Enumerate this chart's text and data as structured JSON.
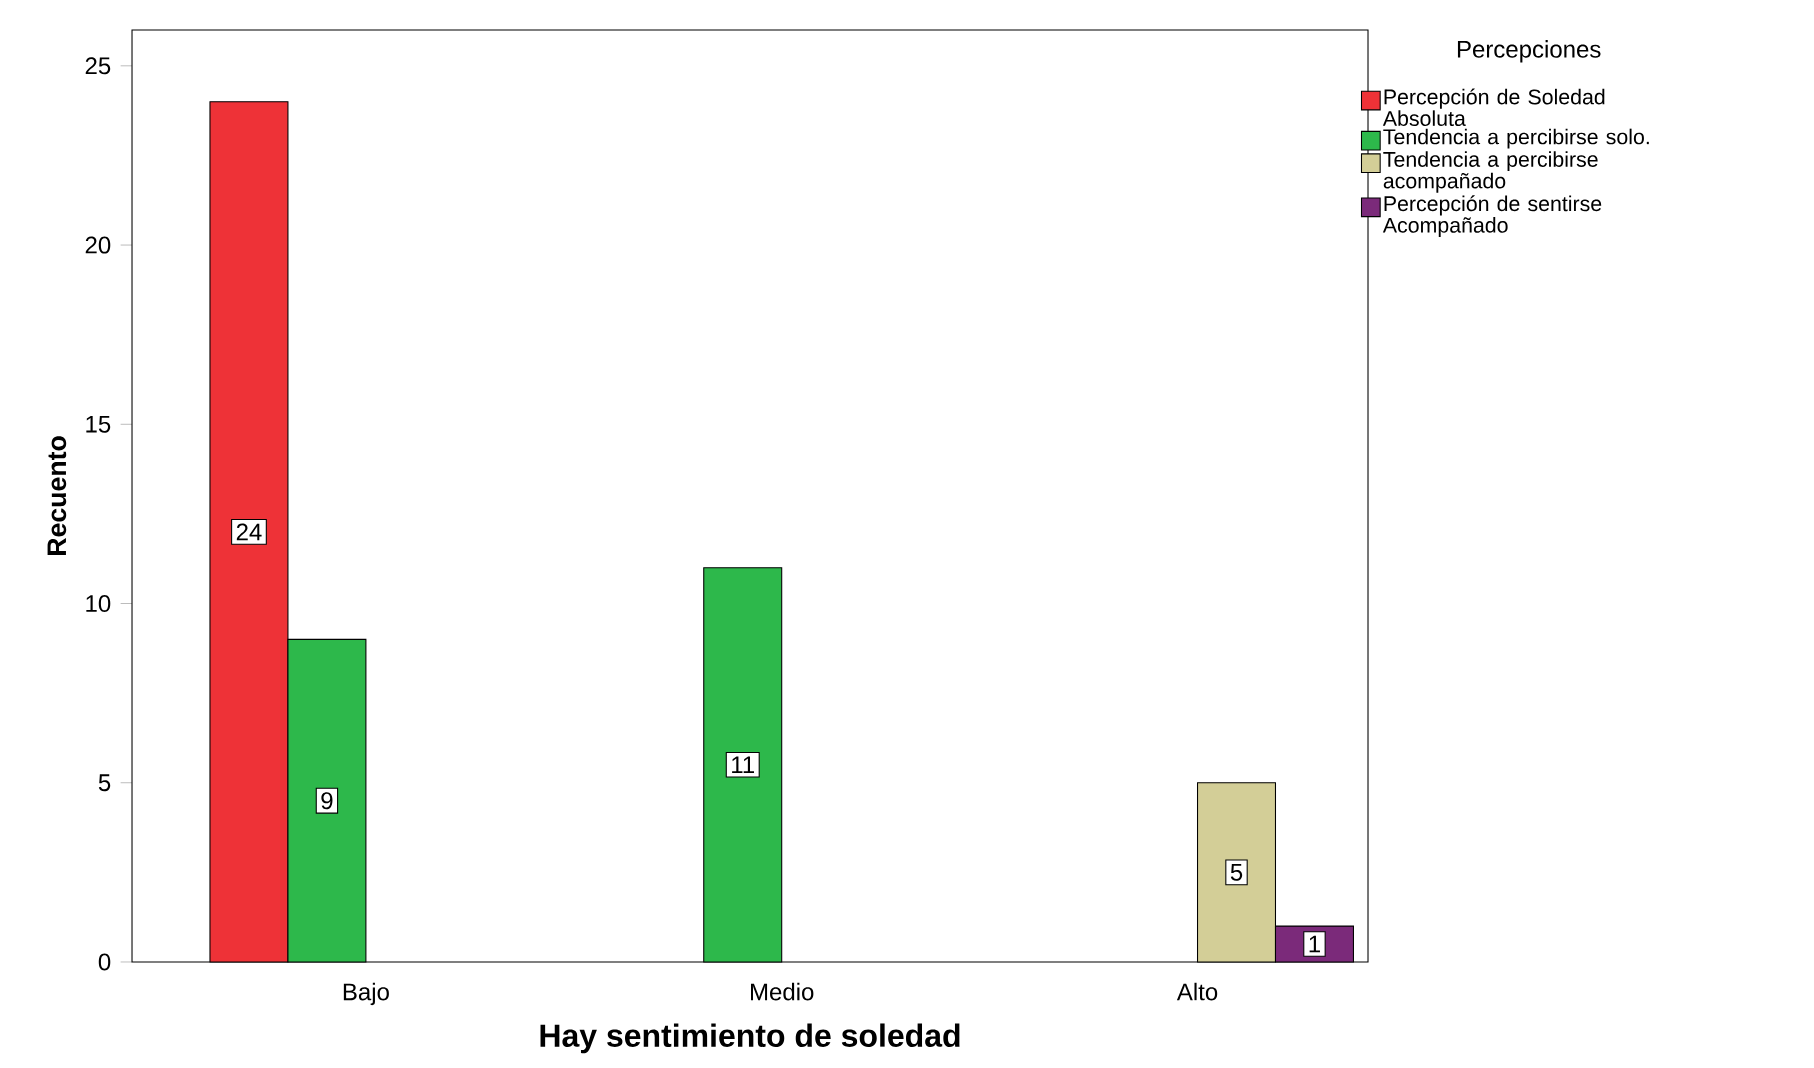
{
  "chart_data": {
    "type": "bar",
    "xlabel": "Hay sentimiento de soledad",
    "ylabel": "Recuento",
    "legend_title": "Percepciones",
    "categories": [
      "Bajo",
      "Medio",
      "Alto"
    ],
    "series": [
      {
        "name": "Percepción de Soledad Absoluta",
        "color": "#ee3237",
        "values": [
          24,
          null,
          null
        ]
      },
      {
        "name": "Tendencia a percibirse solo.",
        "color": "#2db84b",
        "values": [
          9,
          11,
          null
        ]
      },
      {
        "name": "Tendencia a percibirse acompañado",
        "color": "#d3ce97",
        "values": [
          null,
          null,
          5
        ]
      },
      {
        "name": "Percepción de sentirse Acompañado",
        "color": "#7b2a7a",
        "values": [
          null,
          null,
          1
        ]
      }
    ],
    "ylim": [
      0,
      26
    ],
    "yticks": [
      0,
      5,
      10,
      15,
      20,
      25
    ],
    "grid": false,
    "legend": "top right",
    "data_labels": true
  }
}
